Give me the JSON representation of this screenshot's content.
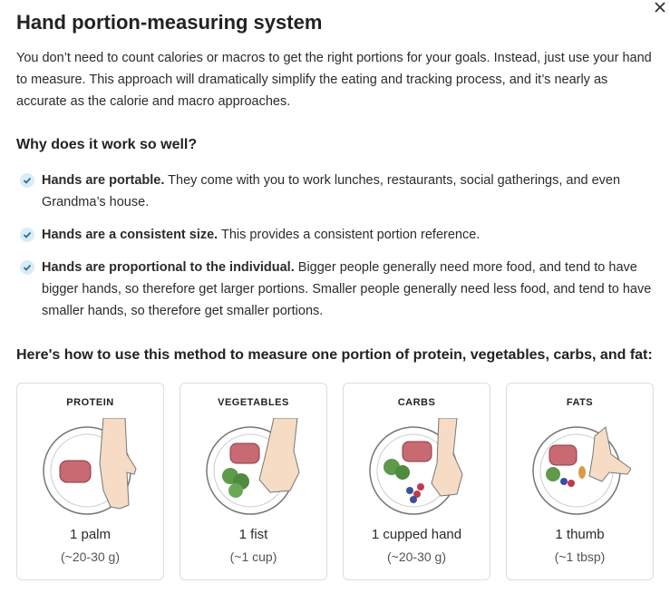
{
  "header": {
    "title": "Hand portion-measuring system"
  },
  "intro": "You don’t need to count calories or macros to get the right portions for your goals. Instead, just use your hand to measure. This approach will dramatically simplify the eating and tracking process, and it’s nearly as accurate as the calorie and macro approaches.",
  "why": {
    "heading": "Why does it work so well?",
    "items": [
      {
        "lead": "Hands are portable.",
        "text": "They come with you to work lunches, restaurants, social gatherings, and even Grandma’s house."
      },
      {
        "lead": "Hands are a consistent size.",
        "text": "This provides a consistent portion reference."
      },
      {
        "lead": "Hands are proportional to the individual.",
        "text": "Bigger people generally need more food, and tend to have bigger hands, so therefore get larger portions. Smaller people generally need less food, and tend to have smaller hands, so therefore get smaller portions."
      }
    ]
  },
  "method": {
    "heading": "Here's how to use this method to measure one portion of protein, vegetables, carbs, and fat:",
    "cards": [
      {
        "label": "PROTEIN",
        "amount": "1 palm",
        "equivalent": "(~20-30 g)"
      },
      {
        "label": "VEGETABLES",
        "amount": "1 fist",
        "equivalent": "(~1 cup)"
      },
      {
        "label": "CARBS",
        "amount": "1 cupped hand",
        "equivalent": "(~20-30 g)"
      },
      {
        "label": "FATS",
        "amount": "1 thumb",
        "equivalent": "(~1 tbsp)"
      }
    ]
  }
}
